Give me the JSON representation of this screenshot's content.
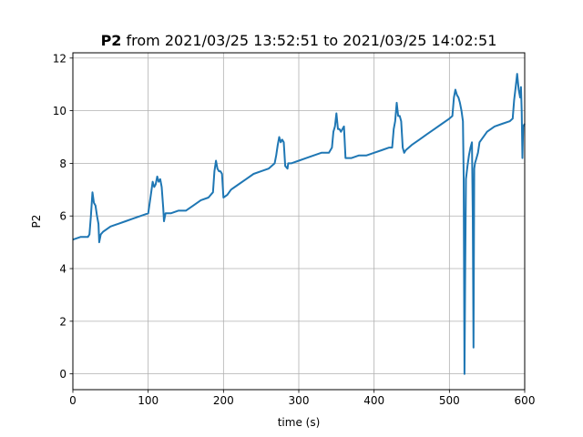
{
  "title": {
    "bold": "P2",
    "rest": " from 2021/03/25 13:52:51 to 2021/03/25 14:02:51"
  },
  "chart_data": {
    "type": "line",
    "title": "P2 from 2021/03/25 13:52:51 to 2021/03/25 14:02:51",
    "xlabel": "time (s)",
    "ylabel": "P2",
    "xlim": [
      0,
      600
    ],
    "ylim": [
      -0.6,
      12.2
    ],
    "xticks": [
      0,
      100,
      200,
      300,
      400,
      500,
      600
    ],
    "yticks": [
      0,
      2,
      4,
      6,
      8,
      10,
      12
    ],
    "xtick_labels": [
      "0",
      "100",
      "200",
      "300",
      "400",
      "500",
      "600"
    ],
    "ytick_labels": [
      "0",
      "2",
      "4",
      "6",
      "8",
      "10",
      "12"
    ],
    "grid": true,
    "legend": "none",
    "series": [
      {
        "color": "#1f77b4",
        "x": [
          0,
          10,
          20,
          22,
          24,
          26,
          28,
          30,
          32,
          34,
          35,
          37,
          40,
          50,
          60,
          70,
          80,
          90,
          100,
          104,
          106,
          108,
          110,
          112,
          114,
          116,
          118,
          120,
          121,
          123,
          130,
          140,
          150,
          160,
          170,
          180,
          186,
          188,
          190,
          192,
          194,
          196,
          198,
          200,
          205,
          210,
          220,
          230,
          240,
          250,
          260,
          268,
          270,
          272,
          274,
          276,
          278,
          280,
          282,
          285,
          286,
          290,
          300,
          310,
          320,
          330,
          340,
          344,
          346,
          348,
          350,
          352,
          354,
          356,
          358,
          360,
          362,
          370,
          380,
          390,
          400,
          410,
          420,
          424,
          426,
          428,
          430,
          432,
          434,
          436,
          438,
          440,
          442,
          450,
          460,
          470,
          480,
          490,
          500,
          504,
          506,
          508,
          510,
          512,
          514,
          516,
          518,
          519,
          520,
          521,
          522,
          524,
          526,
          528,
          530,
          531,
          532,
          533,
          534,
          536,
          538,
          540,
          550,
          560,
          570,
          580,
          584,
          586,
          588,
          590,
          592,
          594,
          595,
          596,
          597,
          598,
          600
        ],
        "y": [
          5.1,
          5.2,
          5.2,
          5.3,
          6.0,
          6.9,
          6.5,
          6.4,
          6.0,
          5.7,
          5.0,
          5.3,
          5.4,
          5.6,
          5.7,
          5.8,
          5.9,
          6.0,
          6.1,
          6.9,
          7.3,
          7.1,
          7.2,
          7.5,
          7.3,
          7.4,
          7.1,
          6.3,
          5.8,
          6.1,
          6.1,
          6.2,
          6.2,
          6.4,
          6.6,
          6.7,
          6.9,
          7.7,
          8.1,
          7.8,
          7.7,
          7.7,
          7.6,
          6.7,
          6.8,
          7.0,
          7.2,
          7.4,
          7.6,
          7.7,
          7.8,
          8.0,
          8.3,
          8.7,
          9.0,
          8.8,
          8.9,
          8.8,
          7.9,
          7.8,
          8.0,
          8.0,
          8.1,
          8.2,
          8.3,
          8.4,
          8.4,
          8.6,
          9.2,
          9.4,
          9.9,
          9.3,
          9.3,
          9.2,
          9.3,
          9.4,
          8.2,
          8.2,
          8.3,
          8.3,
          8.4,
          8.5,
          8.6,
          8.6,
          9.3,
          9.6,
          10.3,
          9.8,
          9.8,
          9.6,
          8.6,
          8.4,
          8.5,
          8.7,
          8.9,
          9.1,
          9.3,
          9.5,
          9.7,
          9.8,
          10.5,
          10.8,
          10.6,
          10.5,
          10.3,
          10.0,
          9.6,
          7.5,
          0.0,
          4.0,
          7.4,
          7.9,
          8.3,
          8.6,
          8.8,
          6.0,
          1.0,
          7.8,
          8.0,
          8.2,
          8.4,
          8.8,
          9.2,
          9.4,
          9.5,
          9.6,
          9.7,
          10.4,
          10.9,
          11.4,
          10.8,
          10.5,
          10.9,
          10.0,
          8.2,
          9.4,
          9.5
        ]
      }
    ]
  }
}
